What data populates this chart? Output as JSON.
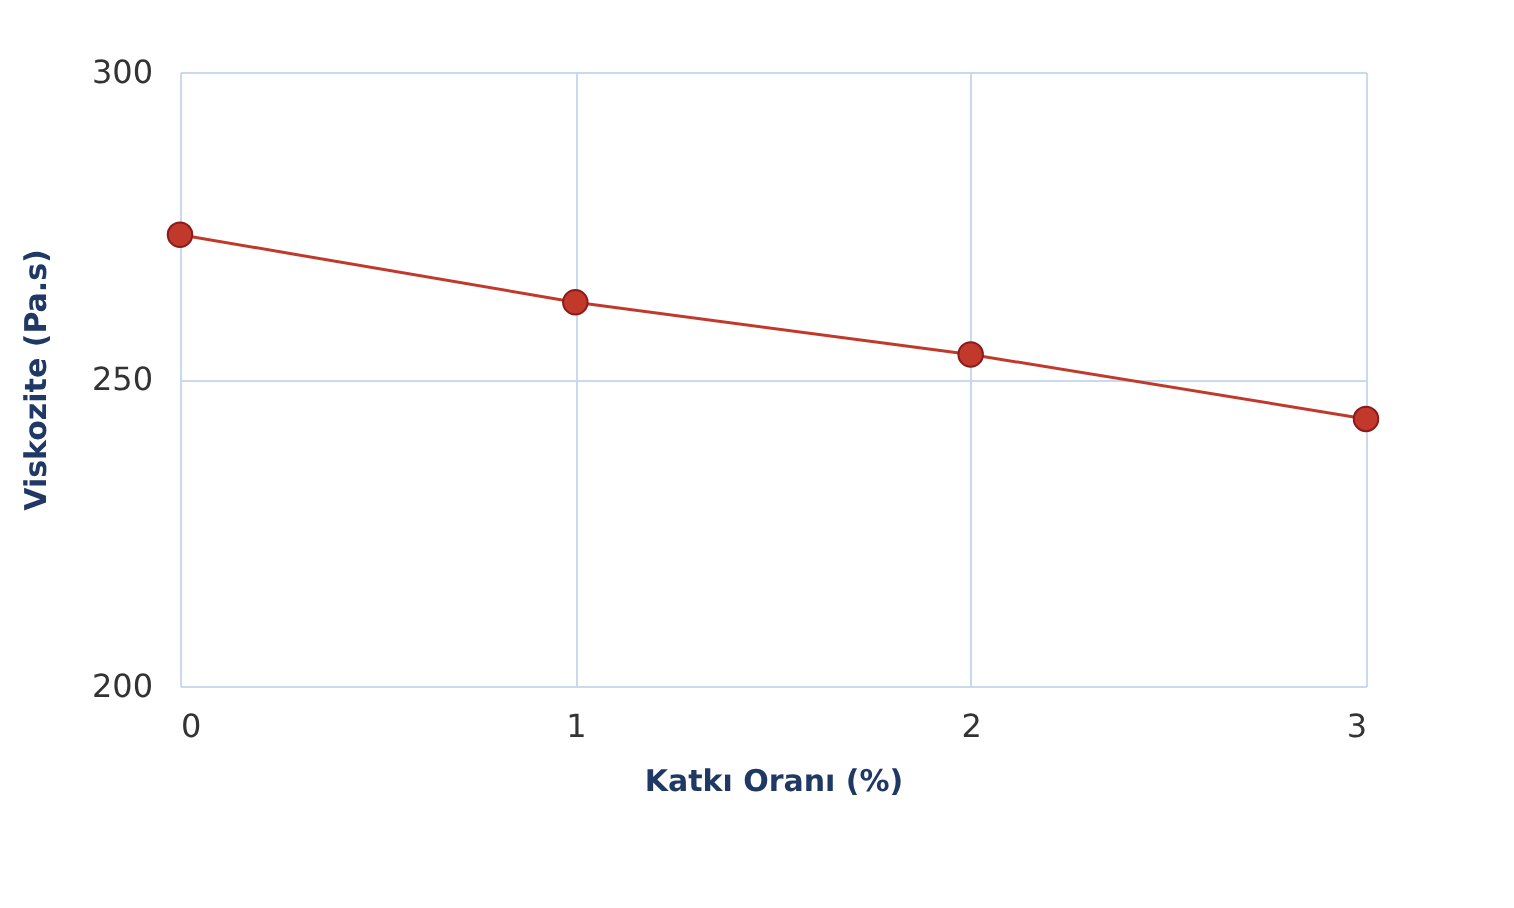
{
  "chart_data": {
    "type": "line",
    "xlabel": "Katkı Oranı (%)",
    "ylabel": "Viskozite (Pa.s)",
    "x": [
      0,
      1,
      2,
      3
    ],
    "series": [
      {
        "color": "#c0392b",
        "values": [
          273.5,
          262.5,
          254,
          243.5
        ]
      }
    ],
    "xlim": [
      0,
      3
    ],
    "xticks": [
      0,
      1,
      2,
      3
    ],
    "ylim": [
      200,
      300
    ],
    "yticks": [
      200,
      250,
      300
    ],
    "grid": true,
    "marker": "circle",
    "line_style": "solid"
  }
}
